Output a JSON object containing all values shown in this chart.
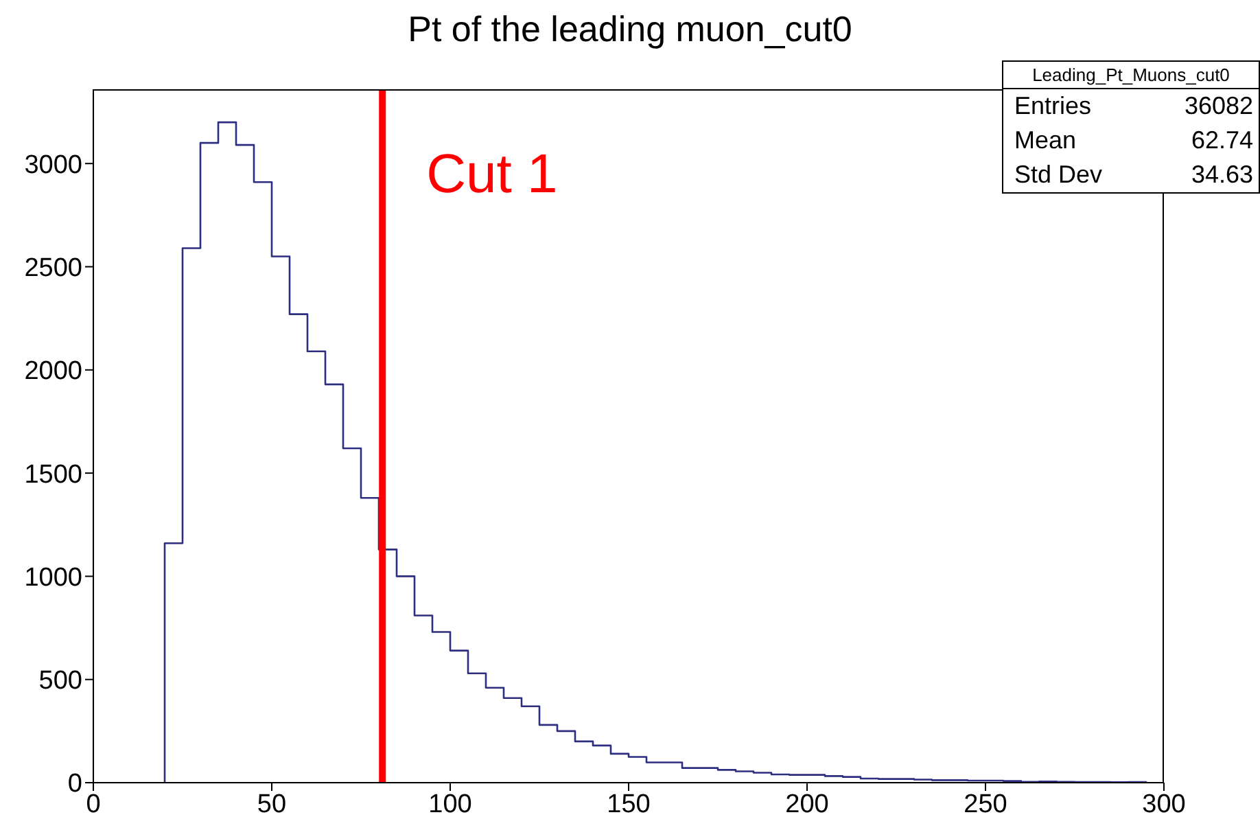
{
  "chart_data": {
    "type": "histogram",
    "title": "Pt of the leading muon_cut0",
    "bins": [
      20,
      25,
      30,
      35,
      40,
      45,
      50,
      55,
      60,
      65,
      70,
      75,
      80,
      85,
      90,
      95,
      100,
      105,
      110,
      115,
      120,
      125,
      130,
      135,
      140,
      145,
      150,
      155,
      160,
      165,
      170,
      175,
      180,
      185,
      190,
      195,
      200,
      205,
      210,
      215,
      220,
      225,
      230,
      235,
      240,
      245,
      250,
      255,
      260,
      265,
      270,
      275,
      280,
      285,
      290,
      295
    ],
    "values": [
      1160,
      2590,
      3100,
      3200,
      3090,
      2910,
      2550,
      2270,
      2090,
      1930,
      1620,
      1380,
      1130,
      1000,
      810,
      730,
      640,
      530,
      460,
      410,
      370,
      280,
      250,
      200,
      180,
      140,
      125,
      98,
      98,
      71,
      71,
      62,
      55,
      48,
      40,
      38,
      38,
      32,
      28,
      20,
      18,
      18,
      15,
      12,
      12,
      10,
      10,
      8,
      4,
      6,
      4,
      3,
      3,
      2,
      3
    ],
    "color": "#2e2e80",
    "xlim": [
      0,
      300
    ],
    "xticks": [
      0,
      50,
      100,
      150,
      200,
      250,
      300
    ],
    "ylim": [
      0,
      3360
    ],
    "yticks": [
      0,
      500,
      1000,
      1500,
      2000,
      2500,
      3000
    ],
    "grid": false,
    "legend": false,
    "ref_lines": [
      {
        "axis": "x",
        "value": 81,
        "label": "Cut 1",
        "color": "#ff0000"
      }
    ],
    "annotations": [
      "Leading_Pt_Muons_cut0",
      "Entries 36082",
      "Mean 62.74",
      "Std Dev 34.63"
    ]
  }
}
